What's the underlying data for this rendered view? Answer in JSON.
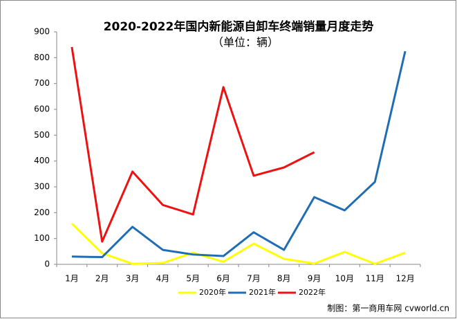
{
  "chart_data": {
    "type": "line",
    "title": "2020-2022年国内新能源自卸车终端销量月度走势",
    "subtitle": "（单位：辆）",
    "categories": [
      "1月",
      "2月",
      "3月",
      "4月",
      "5月",
      "6月",
      "7月",
      "8月",
      "9月",
      "10月",
      "11月",
      "12月"
    ],
    "series": [
      {
        "name": "2020年",
        "color": "#ffff00",
        "values": [
          158,
          43,
          2,
          5,
          45,
          10,
          80,
          21,
          3,
          48,
          2,
          45
        ]
      },
      {
        "name": "2021年",
        "color": "#1f6db5",
        "values": [
          30,
          28,
          145,
          56,
          38,
          32,
          124,
          56,
          260,
          209,
          319,
          825
        ]
      },
      {
        "name": "2022年",
        "color": "#ee1111",
        "values": [
          841,
          88,
          359,
          230,
          193,
          686,
          343,
          375,
          434,
          null,
          null,
          null
        ]
      }
    ],
    "ylim": [
      0,
      900
    ],
    "yticks": [
      0,
      100,
      200,
      300,
      400,
      500,
      600,
      700,
      800,
      900
    ],
    "grid": false,
    "legend": "bottom",
    "source": "制图：第一商用车网 cvworld.cn"
  }
}
